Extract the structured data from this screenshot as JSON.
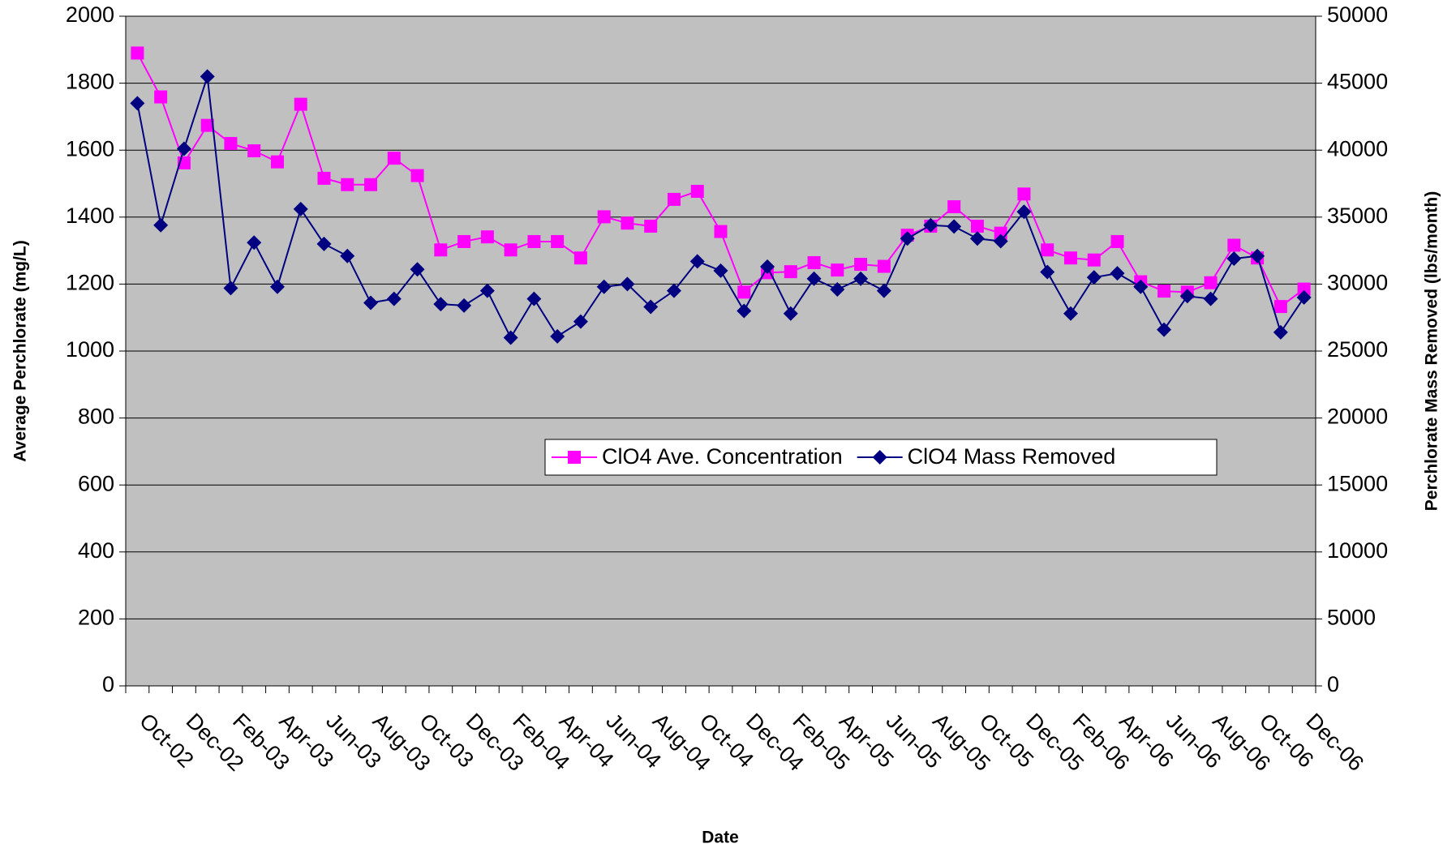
{
  "chart_data": {
    "type": "line",
    "x_label": "Date",
    "y_label": "Average Perchlorate (mg/L)",
    "y2_label": "Perchlorate Mass Removed (lbs/month)",
    "categories": [
      "Oct-02",
      null,
      "Dec-02",
      null,
      "Feb-03",
      null,
      "Apr-03",
      null,
      "Jun-03",
      null,
      "Aug-03",
      null,
      "Oct-03",
      null,
      "Dec-03",
      null,
      "Feb-04",
      null,
      "Apr-04",
      null,
      "Jun-04",
      null,
      "Aug-04",
      null,
      "Oct-04",
      null,
      "Dec-04",
      null,
      "Feb-05",
      null,
      "Apr-05",
      null,
      "Jun-05",
      null,
      "Aug-05",
      null,
      "Oct-05",
      null,
      "Dec-05",
      null,
      "Feb-06",
      null,
      "Apr-06",
      null,
      "Jun-06",
      null,
      "Aug-06",
      null,
      "Oct-06",
      null,
      "Dec-06"
    ],
    "series": [
      {
        "name": "ClO4 Ave. Concentration",
        "color": "#ff00ff",
        "marker": "square",
        "values": [
          1890,
          1759,
          1562,
          1674,
          1620,
          1598,
          1565,
          1737,
          1516,
          1497,
          1497,
          1576,
          1524,
          1302,
          1327,
          1341,
          1302,
          1327,
          1327,
          1278,
          1401,
          1382,
          1373,
          1453,
          1477,
          1357,
          1176,
          1234,
          1237,
          1264,
          1242,
          1259,
          1253,
          1346,
          1373,
          1431,
          1373,
          1352,
          1469,
          1302,
          1278,
          1272,
          1327,
          1207,
          1179,
          1176,
          1204,
          1316,
          1278,
          1133,
          1185
        ]
      },
      {
        "name": "ClO4 Mass Removed",
        "color": "#000080",
        "marker": "diamond",
        "axis": "y2",
        "values": [
          43500,
          34400,
          40100,
          45500,
          29700,
          33100,
          29800,
          35600,
          33000,
          32100,
          28600,
          28900,
          31100,
          28500,
          28400,
          29500,
          26000,
          28900,
          26100,
          27200,
          29800,
          30000,
          28300,
          29500,
          31700,
          31000,
          28000,
          31300,
          27800,
          30400,
          29600,
          30400,
          29500,
          33400,
          34400,
          34300,
          33400,
          33200,
          35400,
          30900,
          27800,
          30500,
          30800,
          29800,
          26600,
          29100,
          28900,
          31900,
          32100,
          26400,
          29000
        ]
      }
    ],
    "ylim": [
      0,
      2000
    ],
    "yticks": [
      0,
      200,
      400,
      600,
      800,
      1000,
      1200,
      1400,
      1600,
      1800,
      2000
    ],
    "y2lim": [
      0,
      50000
    ],
    "y2ticks": [
      0,
      5000,
      10000,
      15000,
      20000,
      25000,
      30000,
      35000,
      40000,
      45000,
      50000
    ],
    "grid": true,
    "plot_background": "#c0c0c0",
    "legend": "center-right"
  }
}
